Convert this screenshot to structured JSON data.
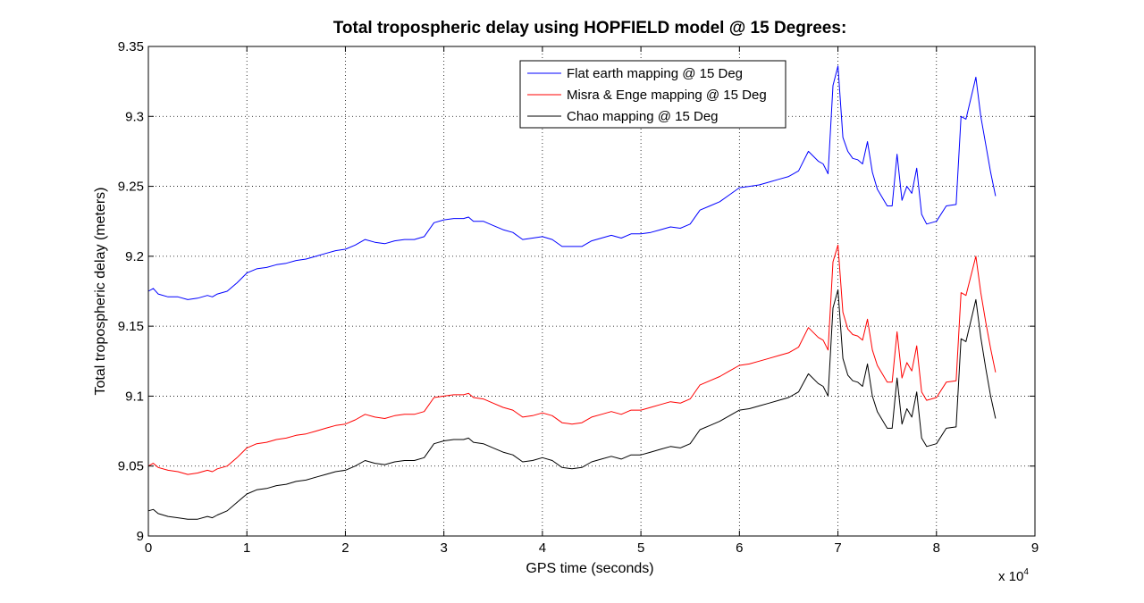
{
  "chart_data": {
    "type": "line",
    "title": "Total tropospheric delay using HOPFIELD model @ 15 Degrees:",
    "xlabel": "GPS time (seconds)",
    "ylabel": "Total tropospheric delay (meters)",
    "x_multiplier_label": "x 10",
    "x_multiplier_exponent": "4",
    "xlim": [
      0,
      9
    ],
    "ylim": [
      9,
      9.35
    ],
    "xticks": [
      "0",
      "1",
      "2",
      "3",
      "4",
      "5",
      "6",
      "7",
      "8",
      "9"
    ],
    "yticks": [
      "9",
      "9.05",
      "9.1",
      "9.15",
      "9.2",
      "9.25",
      "9.3",
      "9.35"
    ],
    "grid": true,
    "legend_position": "top-right",
    "series": [
      {
        "name": "Flat earth mapping @ 15 Deg",
        "color": "#0000ff",
        "points": [
          [
            0,
            9.175
          ],
          [
            0.05,
            9.177
          ],
          [
            0.1,
            9.173
          ],
          [
            0.2,
            9.171
          ],
          [
            0.3,
            9.171
          ],
          [
            0.4,
            9.169
          ],
          [
            0.5,
            9.17
          ],
          [
            0.6,
            9.172
          ],
          [
            0.65,
            9.171
          ],
          [
            0.7,
            9.173
          ],
          [
            0.8,
            9.175
          ],
          [
            0.9,
            9.181
          ],
          [
            1.0,
            9.188
          ],
          [
            1.1,
            9.191
          ],
          [
            1.2,
            9.192
          ],
          [
            1.3,
            9.194
          ],
          [
            1.4,
            9.195
          ],
          [
            1.5,
            9.197
          ],
          [
            1.6,
            9.198
          ],
          [
            1.7,
            9.2
          ],
          [
            1.8,
            9.202
          ],
          [
            1.9,
            9.204
          ],
          [
            2.0,
            9.205
          ],
          [
            2.1,
            9.208
          ],
          [
            2.2,
            9.212
          ],
          [
            2.3,
            9.21
          ],
          [
            2.4,
            9.209
          ],
          [
            2.5,
            9.211
          ],
          [
            2.6,
            9.212
          ],
          [
            2.7,
            9.212
          ],
          [
            2.8,
            9.214
          ],
          [
            2.9,
            9.224
          ],
          [
            3.0,
            9.226
          ],
          [
            3.1,
            9.227
          ],
          [
            3.2,
            9.227
          ],
          [
            3.25,
            9.228
          ],
          [
            3.3,
            9.225
          ],
          [
            3.4,
            9.225
          ],
          [
            3.5,
            9.222
          ],
          [
            3.6,
            9.219
          ],
          [
            3.7,
            9.217
          ],
          [
            3.8,
            9.212
          ],
          [
            3.9,
            9.213
          ],
          [
            4.0,
            9.214
          ],
          [
            4.1,
            9.212
          ],
          [
            4.2,
            9.207
          ],
          [
            4.3,
            9.207
          ],
          [
            4.4,
            9.207
          ],
          [
            4.5,
            9.211
          ],
          [
            4.6,
            9.213
          ],
          [
            4.7,
            9.215
          ],
          [
            4.8,
            9.213
          ],
          [
            4.9,
            9.216
          ],
          [
            5.0,
            9.216
          ],
          [
            5.1,
            9.217
          ],
          [
            5.2,
            9.219
          ],
          [
            5.3,
            9.221
          ],
          [
            5.4,
            9.22
          ],
          [
            5.5,
            9.223
          ],
          [
            5.6,
            9.233
          ],
          [
            5.7,
            9.236
          ],
          [
            5.8,
            9.239
          ],
          [
            5.9,
            9.244
          ],
          [
            6.0,
            9.249
          ],
          [
            6.1,
            9.25
          ],
          [
            6.2,
            9.251
          ],
          [
            6.3,
            9.253
          ],
          [
            6.4,
            9.255
          ],
          [
            6.5,
            9.257
          ],
          [
            6.6,
            9.261
          ],
          [
            6.7,
            9.275
          ],
          [
            6.8,
            9.268
          ],
          [
            6.85,
            9.266
          ],
          [
            6.9,
            9.259
          ],
          [
            6.95,
            9.322
          ],
          [
            7.0,
            9.336
          ],
          [
            7.05,
            9.285
          ],
          [
            7.1,
            9.275
          ],
          [
            7.15,
            9.27
          ],
          [
            7.2,
            9.269
          ],
          [
            7.25,
            9.266
          ],
          [
            7.3,
            9.282
          ],
          [
            7.35,
            9.26
          ],
          [
            7.4,
            9.248
          ],
          [
            7.5,
            9.236
          ],
          [
            7.55,
            9.236
          ],
          [
            7.6,
            9.273
          ],
          [
            7.65,
            9.24
          ],
          [
            7.7,
            9.25
          ],
          [
            7.75,
            9.245
          ],
          [
            7.8,
            9.263
          ],
          [
            7.85,
            9.23
          ],
          [
            7.9,
            9.223
          ],
          [
            8.0,
            9.225
          ],
          [
            8.1,
            9.236
          ],
          [
            8.2,
            9.237
          ],
          [
            8.25,
            9.3
          ],
          [
            8.3,
            9.298
          ],
          [
            8.4,
            9.328
          ],
          [
            8.45,
            9.3
          ],
          [
            8.5,
            9.28
          ],
          [
            8.55,
            9.26
          ],
          [
            8.6,
            9.243
          ]
        ]
      },
      {
        "name": "Misra & Enge mapping @ 15 Deg",
        "color": "#ff0000",
        "points": [
          [
            0,
            9.05
          ],
          [
            0.05,
            9.052
          ],
          [
            0.1,
            9.049
          ],
          [
            0.2,
            9.047
          ],
          [
            0.3,
            9.046
          ],
          [
            0.4,
            9.044
          ],
          [
            0.5,
            9.045
          ],
          [
            0.6,
            9.047
          ],
          [
            0.65,
            9.046
          ],
          [
            0.7,
            9.048
          ],
          [
            0.8,
            9.05
          ],
          [
            0.9,
            9.056
          ],
          [
            1.0,
            9.063
          ],
          [
            1.1,
            9.066
          ],
          [
            1.2,
            9.067
          ],
          [
            1.3,
            9.069
          ],
          [
            1.4,
            9.07
          ],
          [
            1.5,
            9.072
          ],
          [
            1.6,
            9.073
          ],
          [
            1.7,
            9.075
          ],
          [
            1.8,
            9.077
          ],
          [
            1.9,
            9.079
          ],
          [
            2.0,
            9.08
          ],
          [
            2.1,
            9.083
          ],
          [
            2.2,
            9.087
          ],
          [
            2.3,
            9.085
          ],
          [
            2.4,
            9.084
          ],
          [
            2.5,
            9.086
          ],
          [
            2.6,
            9.087
          ],
          [
            2.7,
            9.087
          ],
          [
            2.8,
            9.089
          ],
          [
            2.9,
            9.099
          ],
          [
            3.0,
            9.1
          ],
          [
            3.1,
            9.101
          ],
          [
            3.2,
            9.101
          ],
          [
            3.25,
            9.102
          ],
          [
            3.3,
            9.099
          ],
          [
            3.4,
            9.098
          ],
          [
            3.5,
            9.095
          ],
          [
            3.6,
            9.092
          ],
          [
            3.7,
            9.09
          ],
          [
            3.8,
            9.085
          ],
          [
            3.9,
            9.086
          ],
          [
            4.0,
            9.088
          ],
          [
            4.1,
            9.086
          ],
          [
            4.2,
            9.081
          ],
          [
            4.3,
            9.08
          ],
          [
            4.4,
            9.081
          ],
          [
            4.5,
            9.085
          ],
          [
            4.6,
            9.087
          ],
          [
            4.7,
            9.089
          ],
          [
            4.8,
            9.087
          ],
          [
            4.9,
            9.09
          ],
          [
            5.0,
            9.09
          ],
          [
            5.1,
            9.092
          ],
          [
            5.2,
            9.094
          ],
          [
            5.3,
            9.096
          ],
          [
            5.4,
            9.095
          ],
          [
            5.5,
            9.098
          ],
          [
            5.6,
            9.108
          ],
          [
            5.7,
            9.111
          ],
          [
            5.8,
            9.114
          ],
          [
            5.9,
            9.118
          ],
          [
            6.0,
            9.122
          ],
          [
            6.1,
            9.123
          ],
          [
            6.2,
            9.125
          ],
          [
            6.3,
            9.127
          ],
          [
            6.4,
            9.129
          ],
          [
            6.5,
            9.131
          ],
          [
            6.6,
            9.135
          ],
          [
            6.7,
            9.149
          ],
          [
            6.8,
            9.142
          ],
          [
            6.85,
            9.14
          ],
          [
            6.9,
            9.133
          ],
          [
            6.95,
            9.196
          ],
          [
            7.0,
            9.208
          ],
          [
            7.05,
            9.16
          ],
          [
            7.1,
            9.148
          ],
          [
            7.15,
            9.144
          ],
          [
            7.2,
            9.143
          ],
          [
            7.25,
            9.14
          ],
          [
            7.3,
            9.155
          ],
          [
            7.35,
            9.133
          ],
          [
            7.4,
            9.122
          ],
          [
            7.5,
            9.11
          ],
          [
            7.55,
            9.11
          ],
          [
            7.6,
            9.146
          ],
          [
            7.65,
            9.113
          ],
          [
            7.7,
            9.124
          ],
          [
            7.75,
            9.118
          ],
          [
            7.8,
            9.136
          ],
          [
            7.85,
            9.103
          ],
          [
            7.9,
            9.097
          ],
          [
            8.0,
            9.099
          ],
          [
            8.1,
            9.11
          ],
          [
            8.2,
            9.111
          ],
          [
            8.25,
            9.174
          ],
          [
            8.3,
            9.172
          ],
          [
            8.4,
            9.2
          ],
          [
            8.45,
            9.174
          ],
          [
            8.5,
            9.153
          ],
          [
            8.55,
            9.134
          ],
          [
            8.6,
            9.117
          ]
        ]
      },
      {
        "name": "Chao mapping @ 15 Deg",
        "color": "#000000",
        "points": [
          [
            0,
            9.018
          ],
          [
            0.05,
            9.019
          ],
          [
            0.1,
            9.016
          ],
          [
            0.2,
            9.014
          ],
          [
            0.3,
            9.013
          ],
          [
            0.4,
            9.012
          ],
          [
            0.5,
            9.012
          ],
          [
            0.6,
            9.014
          ],
          [
            0.65,
            9.013
          ],
          [
            0.7,
            9.015
          ],
          [
            0.8,
            9.018
          ],
          [
            0.9,
            9.024
          ],
          [
            1.0,
            9.03
          ],
          [
            1.1,
            9.033
          ],
          [
            1.2,
            9.034
          ],
          [
            1.3,
            9.036
          ],
          [
            1.4,
            9.037
          ],
          [
            1.5,
            9.039
          ],
          [
            1.6,
            9.04
          ],
          [
            1.7,
            9.042
          ],
          [
            1.8,
            9.044
          ],
          [
            1.9,
            9.046
          ],
          [
            2.0,
            9.047
          ],
          [
            2.1,
            9.05
          ],
          [
            2.2,
            9.054
          ],
          [
            2.3,
            9.052
          ],
          [
            2.4,
            9.051
          ],
          [
            2.5,
            9.053
          ],
          [
            2.6,
            9.054
          ],
          [
            2.7,
            9.054
          ],
          [
            2.8,
            9.056
          ],
          [
            2.9,
            9.066
          ],
          [
            3.0,
            9.068
          ],
          [
            3.1,
            9.069
          ],
          [
            3.2,
            9.069
          ],
          [
            3.25,
            9.07
          ],
          [
            3.3,
            9.067
          ],
          [
            3.4,
            9.066
          ],
          [
            3.5,
            9.063
          ],
          [
            3.6,
            9.06
          ],
          [
            3.7,
            9.058
          ],
          [
            3.8,
            9.053
          ],
          [
            3.9,
            9.054
          ],
          [
            4.0,
            9.056
          ],
          [
            4.1,
            9.054
          ],
          [
            4.2,
            9.049
          ],
          [
            4.3,
            9.048
          ],
          [
            4.4,
            9.049
          ],
          [
            4.5,
            9.053
          ],
          [
            4.6,
            9.055
          ],
          [
            4.7,
            9.057
          ],
          [
            4.8,
            9.055
          ],
          [
            4.9,
            9.058
          ],
          [
            5.0,
            9.058
          ],
          [
            5.1,
            9.06
          ],
          [
            5.2,
            9.062
          ],
          [
            5.3,
            9.064
          ],
          [
            5.4,
            9.063
          ],
          [
            5.5,
            9.066
          ],
          [
            5.6,
            9.076
          ],
          [
            5.7,
            9.079
          ],
          [
            5.8,
            9.082
          ],
          [
            5.9,
            9.086
          ],
          [
            6.0,
            9.09
          ],
          [
            6.1,
            9.091
          ],
          [
            6.2,
            9.093
          ],
          [
            6.3,
            9.095
          ],
          [
            6.4,
            9.097
          ],
          [
            6.5,
            9.099
          ],
          [
            6.6,
            9.103
          ],
          [
            6.7,
            9.116
          ],
          [
            6.8,
            9.109
          ],
          [
            6.85,
            9.107
          ],
          [
            6.9,
            9.1
          ],
          [
            6.95,
            9.163
          ],
          [
            7.0,
            9.176
          ],
          [
            7.05,
            9.127
          ],
          [
            7.1,
            9.115
          ],
          [
            7.15,
            9.111
          ],
          [
            7.2,
            9.11
          ],
          [
            7.25,
            9.107
          ],
          [
            7.3,
            9.123
          ],
          [
            7.35,
            9.1
          ],
          [
            7.4,
            9.089
          ],
          [
            7.5,
            9.077
          ],
          [
            7.55,
            9.077
          ],
          [
            7.6,
            9.113
          ],
          [
            7.65,
            9.08
          ],
          [
            7.7,
            9.091
          ],
          [
            7.75,
            9.085
          ],
          [
            7.8,
            9.103
          ],
          [
            7.85,
            9.07
          ],
          [
            7.9,
            9.064
          ],
          [
            8.0,
            9.066
          ],
          [
            8.1,
            9.077
          ],
          [
            8.2,
            9.078
          ],
          [
            8.25,
            9.141
          ],
          [
            8.3,
            9.139
          ],
          [
            8.4,
            9.169
          ],
          [
            8.45,
            9.142
          ],
          [
            8.5,
            9.12
          ],
          [
            8.55,
            9.1
          ],
          [
            8.6,
            9.084
          ]
        ]
      }
    ]
  }
}
